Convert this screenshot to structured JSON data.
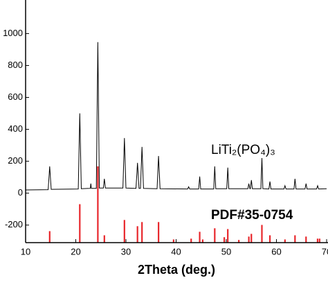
{
  "chart_data": {
    "type": "line",
    "xlabel": "2Theta (deg.)",
    "xlim": [
      10,
      70
    ],
    "xticks": [
      10,
      20,
      30,
      40,
      50,
      60,
      70
    ],
    "ylim": [
      -310,
      1080
    ],
    "yticks": [
      -200,
      0,
      200,
      400,
      600,
      800,
      1000
    ],
    "annotations": [
      {
        "text": "LiTi₂(PO₄)₃",
        "color": "#000000"
      },
      {
        "text": "PDF#35-0754",
        "color": "#e8262b"
      }
    ],
    "series": [
      {
        "kind": "line",
        "color": "#000000",
        "x": [
          10,
          14.5,
          14.8,
          15.1,
          20.5,
          20.8,
          21.1,
          22.9,
          23.0,
          23.1,
          24.1,
          24.4,
          24.7,
          25.5,
          25.7,
          25.9,
          29.4,
          29.7,
          30.0,
          32.0,
          32.3,
          32.6,
          32.9,
          33.2,
          33.5,
          36.2,
          36.5,
          36.8,
          42.3,
          42.5,
          42.7,
          44.5,
          44.7,
          44.9,
          47.5,
          47.7,
          47.9,
          50.1,
          50.3,
          50.5,
          54.3,
          54.5,
          54.7,
          54.8,
          55.0,
          55.2,
          56.9,
          57.1,
          57.3,
          58.5,
          58.7,
          58.9,
          61.5,
          61.7,
          61.9,
          63.5,
          63.7,
          63.9,
          65.7,
          65.9,
          66.1,
          68.0,
          68.2,
          68.4,
          70
        ],
        "values": [
          20,
          22,
          168,
          24,
          26,
          500,
          28,
          30,
          60,
          30,
          30,
          946,
          32,
          32,
          90,
          32,
          32,
          345,
          32,
          30,
          190,
          30,
          30,
          290,
          30,
          28,
          233,
          28,
          26,
          40,
          26,
          26,
          104,
          26,
          26,
          168,
          28,
          28,
          160,
          28,
          28,
          60,
          28,
          28,
          82,
          28,
          28,
          220,
          28,
          26,
          73,
          26,
          26,
          47,
          26,
          26,
          90,
          26,
          26,
          60,
          26,
          26,
          47,
          26,
          28
        ]
      },
      {
        "kind": "stem",
        "color": "#e8262b",
        "x": [
          14.8,
          20.8,
          24.4,
          25.7,
          29.7,
          32.3,
          33.2,
          36.5,
          39.5,
          43.0,
          44.7,
          45.3,
          47.7,
          49.6,
          50.3,
          52.5,
          54.5,
          55.0,
          57.1,
          58.7,
          61.7,
          63.7,
          65.9,
          68.2,
          68.6
        ],
        "values": [
          -238,
          -69,
          168,
          -264,
          -168,
          -207,
          -181,
          -181,
          -290,
          -285,
          -242,
          -290,
          -220,
          -276,
          -225,
          -293,
          -272,
          -255,
          -199,
          -264,
          -290,
          -264,
          -272,
          -285,
          -285
        ]
      }
    ]
  }
}
